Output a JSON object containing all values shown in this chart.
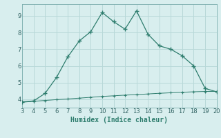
{
  "x_main": [
    3,
    4,
    5,
    6,
    7,
    8,
    9,
    10,
    11,
    12,
    13,
    14,
    15,
    16,
    17,
    18,
    19,
    20
  ],
  "y_main": [
    3.85,
    3.9,
    4.35,
    5.3,
    6.55,
    7.5,
    8.05,
    9.2,
    8.65,
    8.2,
    9.3,
    7.9,
    7.2,
    7.0,
    6.6,
    6.0,
    4.65,
    4.45
  ],
  "x_flat": [
    3,
    4,
    5,
    6,
    7,
    8,
    9,
    10,
    11,
    12,
    13,
    14,
    15,
    16,
    17,
    18,
    19,
    20
  ],
  "y_flat": [
    3.82,
    3.88,
    3.93,
    3.98,
    4.02,
    4.07,
    4.12,
    4.17,
    4.21,
    4.25,
    4.28,
    4.32,
    4.36,
    4.39,
    4.42,
    4.45,
    4.47,
    4.47
  ],
  "line_color": "#2e7d6e",
  "bg_color": "#d8eeee",
  "grid_color": "#b8d8d8",
  "xlabel": "Humidex (Indice chaleur)",
  "xlim": [
    3,
    20
  ],
  "ylim": [
    3.5,
    9.7
  ],
  "xticks": [
    3,
    4,
    5,
    6,
    7,
    8,
    9,
    10,
    11,
    12,
    13,
    14,
    15,
    16,
    17,
    18,
    19,
    20
  ],
  "yticks": [
    4,
    5,
    6,
    7,
    8,
    9
  ],
  "marker": "+"
}
